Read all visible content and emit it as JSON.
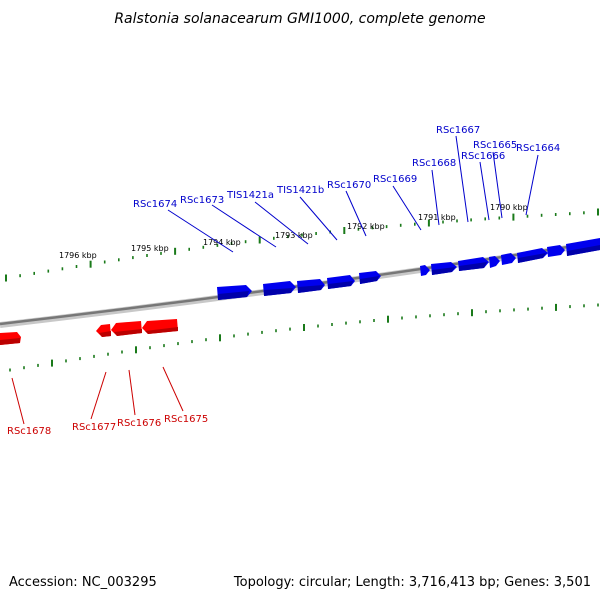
{
  "title": "Ralstonia solanacearum GMI1000, complete genome",
  "footer": {
    "accession": "Accession: NC_003295",
    "summary": "Topology: circular; Length: 3,716,413 bp; Genes: 3,501"
  },
  "colors": {
    "forward_genes": "#0000ee",
    "reverse_genes": "#ff0000",
    "ticks": "#1a7a1a",
    "backbone": "#777777"
  },
  "kbp_labels": [
    "1796 kbp",
    "1795 kbp",
    "1794 kbp",
    "1793 kbp",
    "1792 kbp",
    "1791 kbp",
    "1790 kbp"
  ],
  "forward_gene_labels": [
    "RSc1674",
    "RSc1673",
    "TIS1421a",
    "TIS1421b",
    "RSc1670",
    "RSc1669",
    "RSc1668",
    "RSc1667",
    "RSc1666",
    "RSc1665",
    "RSc1664"
  ],
  "reverse_gene_labels": [
    "RSc1678",
    "RSc1677",
    "RSc1676",
    "RSc1675"
  ]
}
